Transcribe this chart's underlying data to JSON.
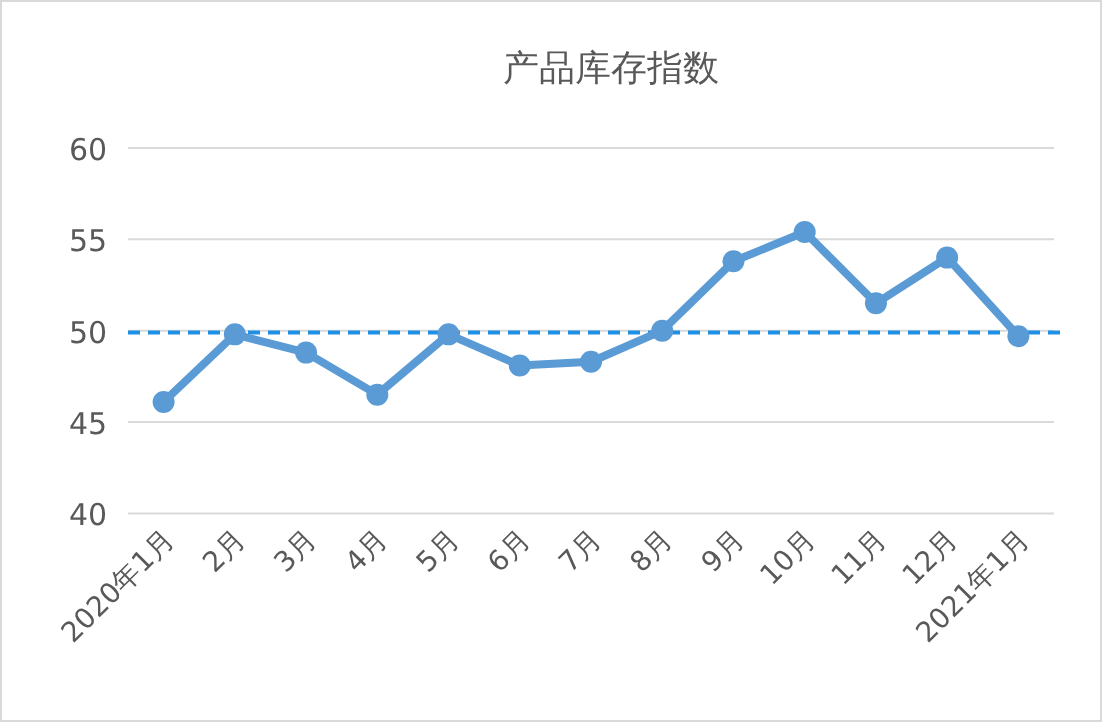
{
  "chart_data": {
    "type": "line",
    "title": "产品库存指数",
    "categories": [
      "2020年1月",
      "2月",
      "3月",
      "4月",
      "5月",
      "6月",
      "7月",
      "8月",
      "9月",
      "10月",
      "11月",
      "12月",
      "2021年1月"
    ],
    "series": [
      {
        "color": "#5b9bd5",
        "values": [
          46.1,
          49.8,
          48.8,
          46.5,
          49.8,
          48.1,
          48.3,
          50.0,
          53.8,
          55.4,
          51.5,
          54.0,
          49.7
        ]
      }
    ],
    "ylim": [
      40,
      60
    ],
    "yticks": [
      40,
      45,
      50,
      55,
      60
    ],
    "grid": "y",
    "marker": "circle",
    "line_style": "solid",
    "ref_lines": [
      {
        "axis": "y",
        "value": 49.9,
        "color": "#1e90e6",
        "line_style": "dashed"
      }
    ]
  }
}
